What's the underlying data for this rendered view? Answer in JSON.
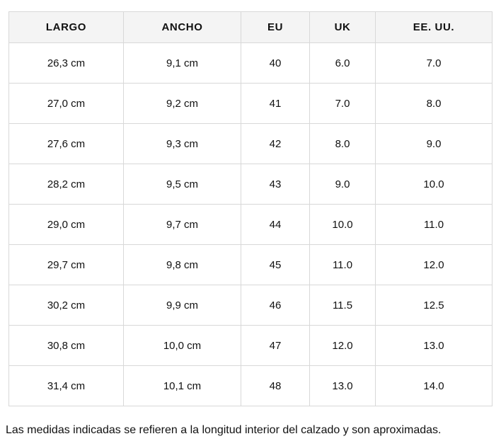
{
  "colors": {
    "header_bg": "#f4f4f4",
    "border": "#d8d8d8",
    "text": "#111111",
    "background": "#ffffff"
  },
  "table": {
    "columns": [
      "LARGO",
      "ANCHO",
      "EU",
      "UK",
      "EE. UU."
    ],
    "rows": [
      [
        "26,3 cm",
        "9,1 cm",
        "40",
        "6.0",
        "7.0"
      ],
      [
        "27,0 cm",
        "9,2 cm",
        "41",
        "7.0",
        "8.0"
      ],
      [
        "27,6 cm",
        "9,3 cm",
        "42",
        "8.0",
        "9.0"
      ],
      [
        "28,2 cm",
        "9,5 cm",
        "43",
        "9.0",
        "10.0"
      ],
      [
        "29,0 cm",
        "9,7 cm",
        "44",
        "10.0",
        "11.0"
      ],
      [
        "29,7 cm",
        "9,8 cm",
        "45",
        "11.0",
        "12.0"
      ],
      [
        "30,2 cm",
        "9,9 cm",
        "46",
        "11.5",
        "12.5"
      ],
      [
        "30,8 cm",
        "10,0 cm",
        "47",
        "12.0",
        "13.0"
      ],
      [
        "31,4 cm",
        "10,1 cm",
        "48",
        "13.0",
        "14.0"
      ]
    ]
  },
  "footer": {
    "note": "Las medidas indicadas se refieren a la longitud interior del calzado y son aproximadas."
  }
}
